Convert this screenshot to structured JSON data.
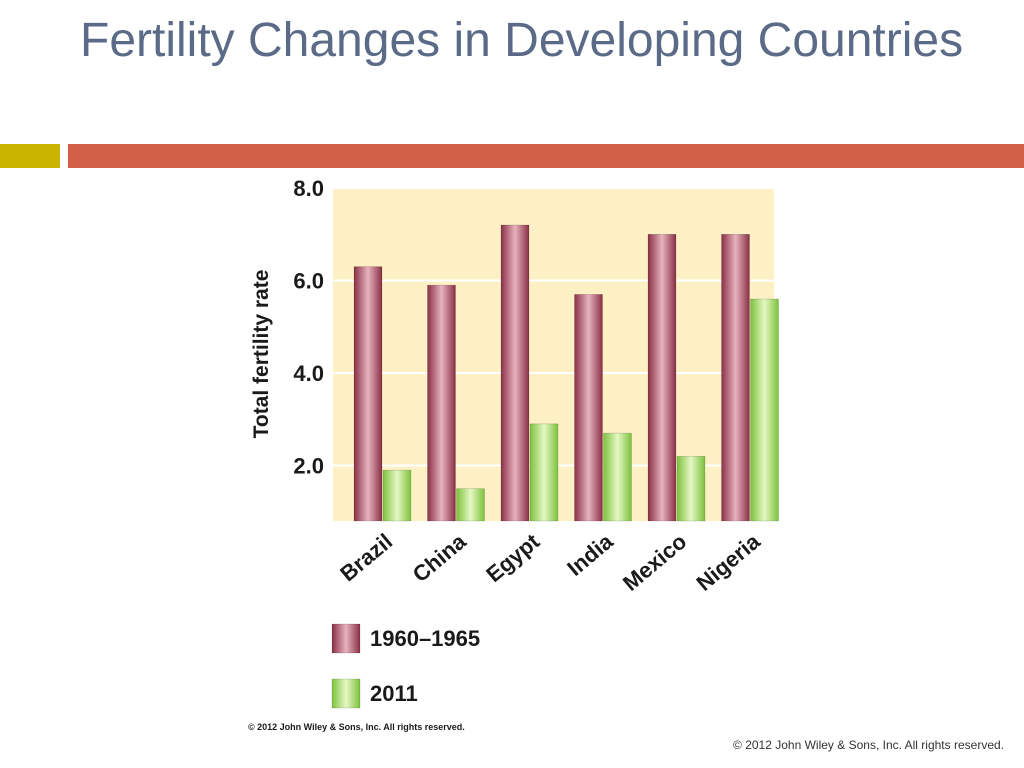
{
  "slide": {
    "title": "Fertility Changes in Developing Countries",
    "footer": "© 2012 John Wiley & Sons, Inc. All rights reserved.",
    "accent_colors": {
      "left": "#c9b400",
      "right": "#d05f46",
      "title": "#5a6a87"
    }
  },
  "chart_data": {
    "type": "bar",
    "title": "",
    "xlabel": "",
    "ylabel": "Total fertility rate",
    "categories": [
      "Brazil",
      "China",
      "Egypt",
      "India",
      "Mexico",
      "Nigeria"
    ],
    "series": [
      {
        "name": "1960–1965",
        "values": [
          6.3,
          5.9,
          7.2,
          5.7,
          7.0,
          7.0
        ],
        "color": "#9c3d52"
      },
      {
        "name": "2011",
        "values": [
          1.9,
          1.5,
          2.9,
          2.7,
          2.2,
          5.6
        ],
        "color": "#8fd14f"
      }
    ],
    "yticks": [
      "2.0",
      "4.0",
      "6.0",
      "8.0"
    ],
    "ylim": [
      0.8,
      8.0
    ],
    "grid": true,
    "legend": "bottom",
    "plot_background": "#fcf0c4",
    "credit": "© 2012 John Wiley & Sons, Inc. All rights reserved."
  }
}
